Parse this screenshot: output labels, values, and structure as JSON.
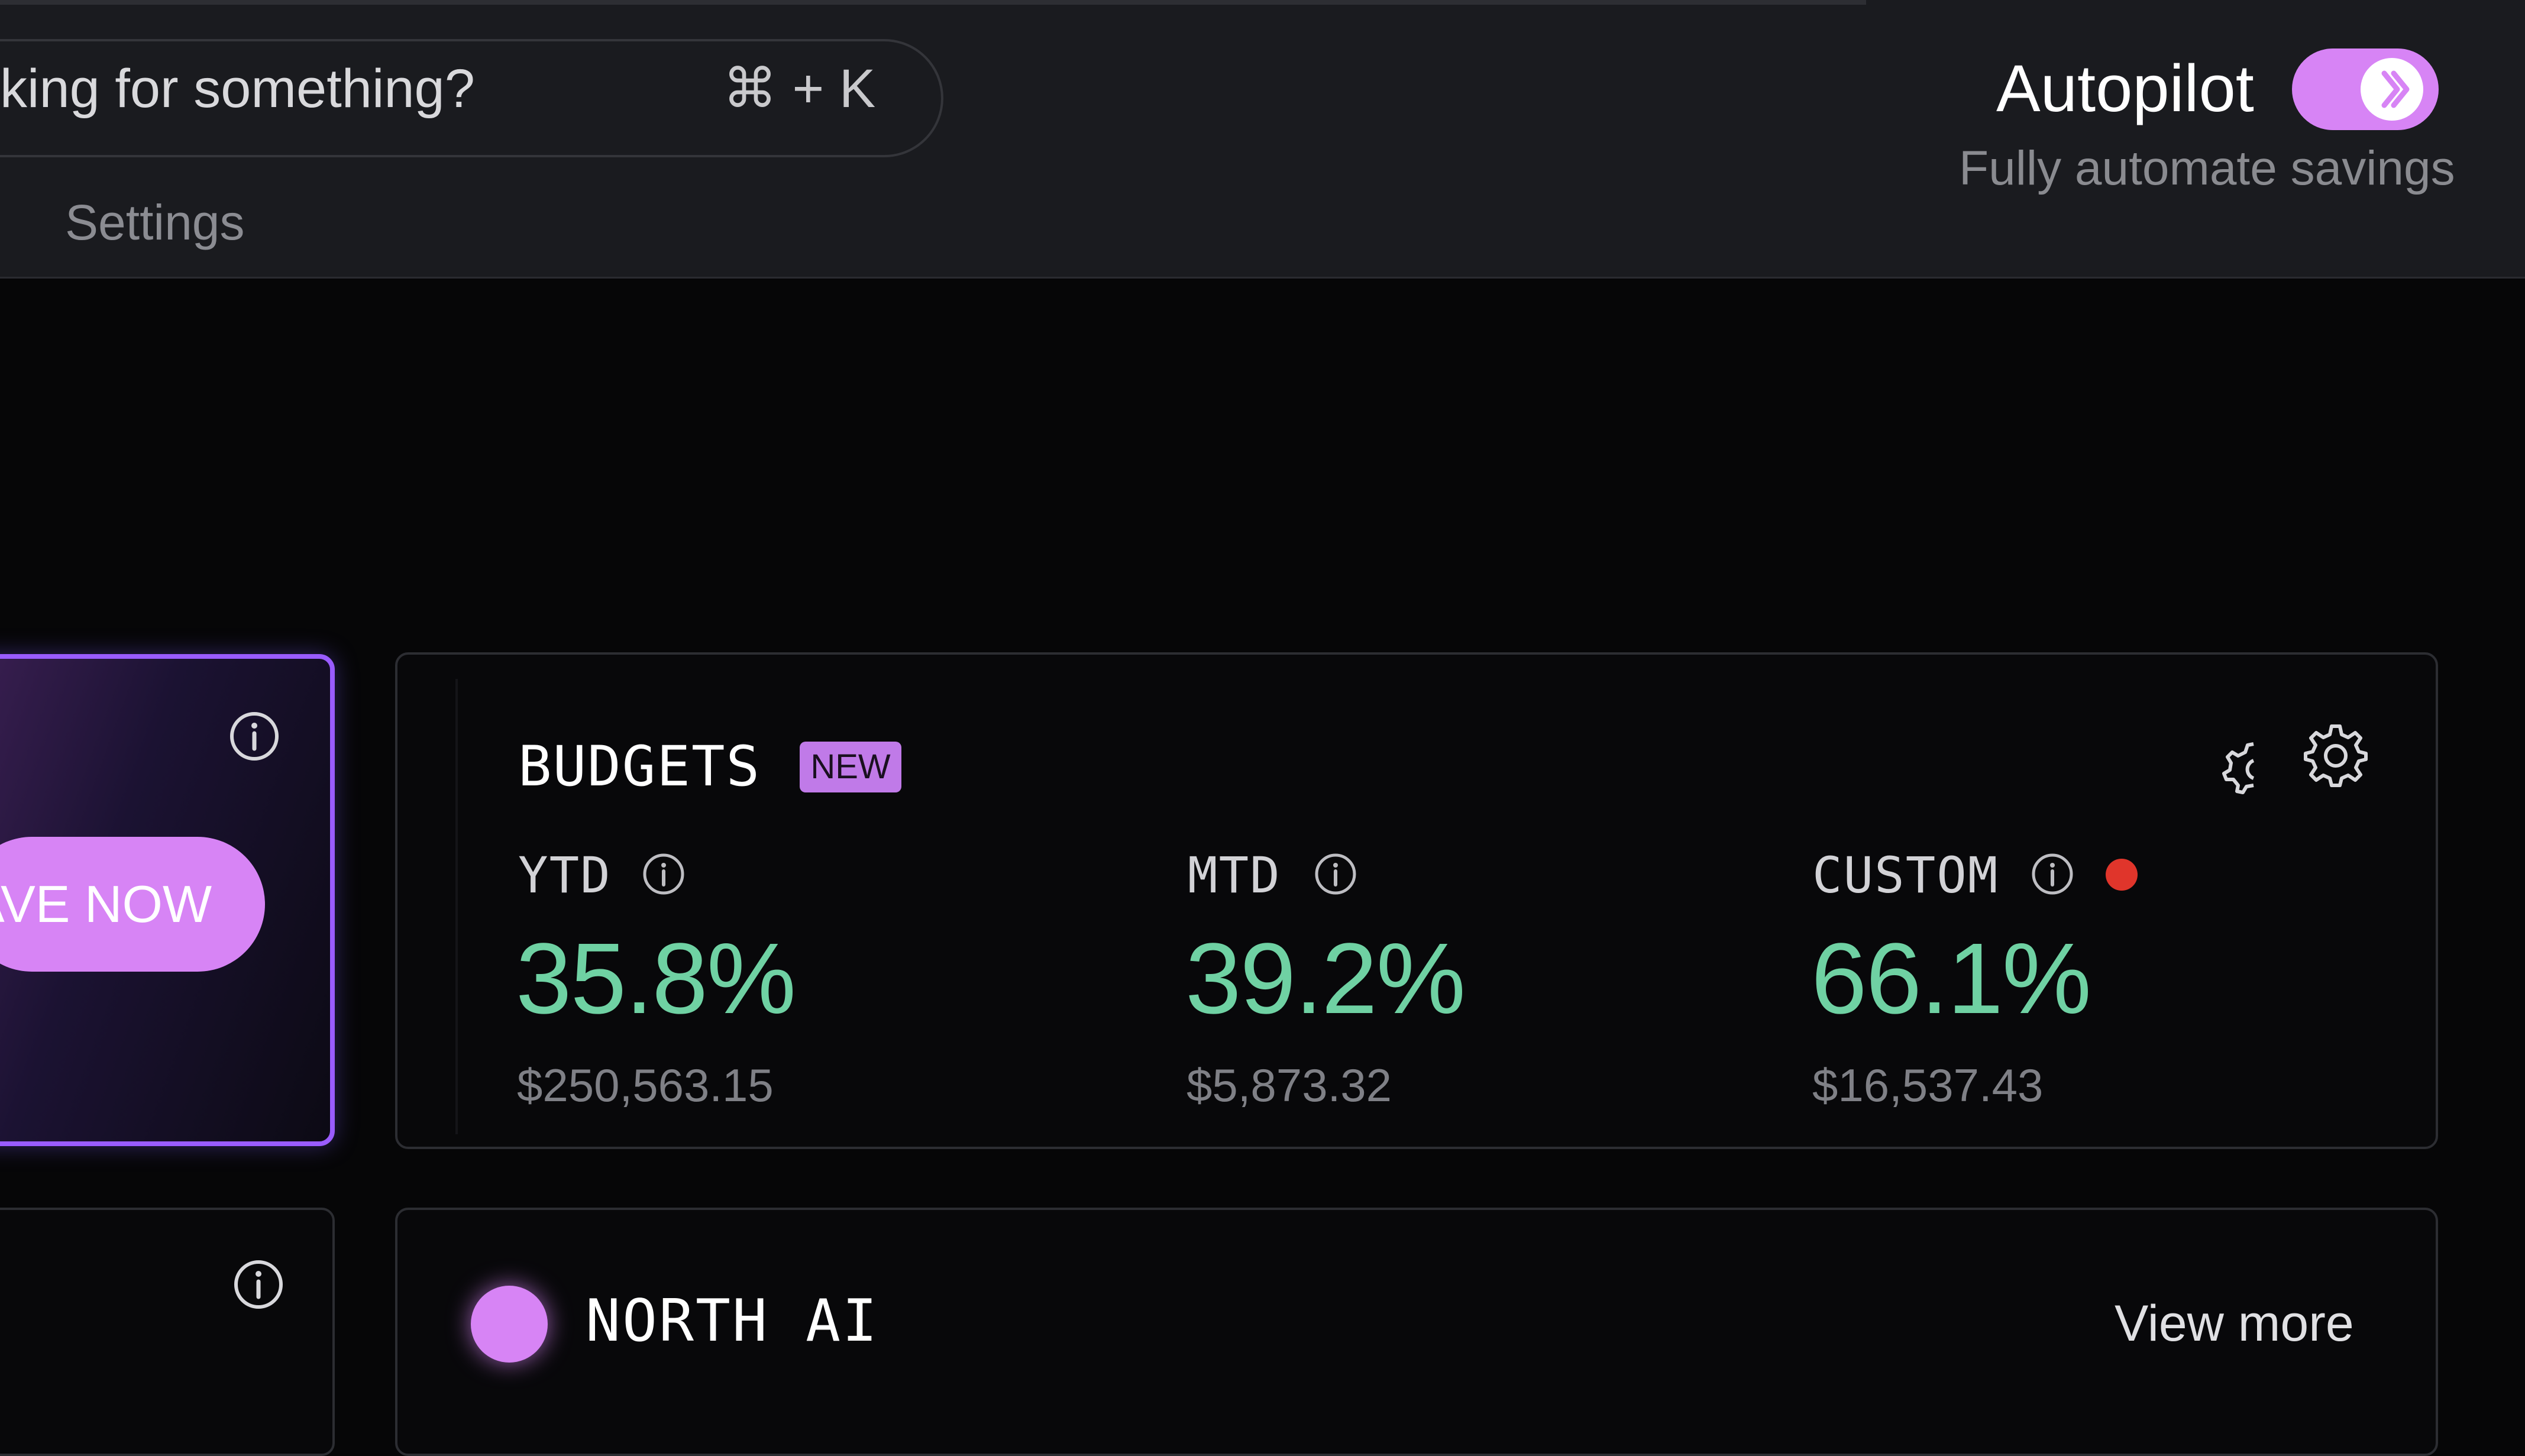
{
  "header": {
    "search": {
      "placeholder": "king for something?",
      "shortcut": "⌘ + K"
    },
    "nav": {
      "settings_label": "Settings"
    },
    "autopilot": {
      "label": "Autopilot",
      "subtitle": "Fully automate savings",
      "enabled": true,
      "toggle_color": "#d784f5"
    }
  },
  "promo_card": {
    "button_label": "AVE NOW",
    "info_icon": "info-icon",
    "border_color": "#9a5cff"
  },
  "budgets": {
    "title": "BUDGETS",
    "badge": "NEW",
    "metrics": [
      {
        "label": "YTD",
        "percent": "35.8%",
        "amount": "$250,563.15"
      },
      {
        "label": "MTD",
        "percent": "39.2%",
        "amount": "$5,873.32"
      },
      {
        "label": "CUSTOM",
        "percent": "66.1%",
        "amount": "$16,537.43",
        "alert": true
      }
    ],
    "value_color": "#6fd1a3",
    "alert_color": "#e0352b"
  },
  "north_ai": {
    "title": "NORTH AI",
    "link_label": "View more"
  }
}
